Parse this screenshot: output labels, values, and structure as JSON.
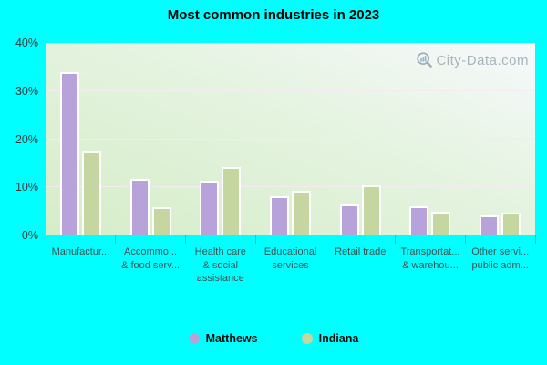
{
  "title": "Most common industries in 2023",
  "watermark": {
    "text": "City-Data.com"
  },
  "colors": {
    "background": "#00ffff",
    "matthews": "#b7a3d9",
    "indiana": "#c6d6a0",
    "watermark_text": "#a9b3bc"
  },
  "chart_data": {
    "type": "bar",
    "title": "Most common industries in 2023",
    "categories": [
      "Manufactur...",
      "Accommo... & food serv...",
      "Health care & social assistance",
      "Educational services",
      "Retail trade",
      "Transportat... & warehou...",
      "Other servi... public adm..."
    ],
    "category_lines": [
      [
        "Manufactur..."
      ],
      [
        "Accommo...",
        "& food serv..."
      ],
      [
        "Health care",
        "& social",
        "assistance"
      ],
      [
        "Educational",
        "services"
      ],
      [
        "Retail trade"
      ],
      [
        "Transportat...",
        "& warehou..."
      ],
      [
        "Other servi...",
        "public adm..."
      ]
    ],
    "series": [
      {
        "name": "Matthews",
        "color": "#b7a3d9",
        "values": [
          34,
          11.8,
          11.4,
          8.2,
          6.4,
          6,
          4.2
        ]
      },
      {
        "name": "Indiana",
        "color": "#c6d6a0",
        "values": [
          17.5,
          5.8,
          14.3,
          9.3,
          10.5,
          5,
          4.7
        ]
      }
    ],
    "ylabel": "",
    "xlabel": "",
    "ylim": [
      0,
      40
    ],
    "yticks": [
      0,
      10,
      20,
      30,
      40
    ],
    "ytick_suffix": "%",
    "grid": true,
    "legend_position": "bottom"
  }
}
